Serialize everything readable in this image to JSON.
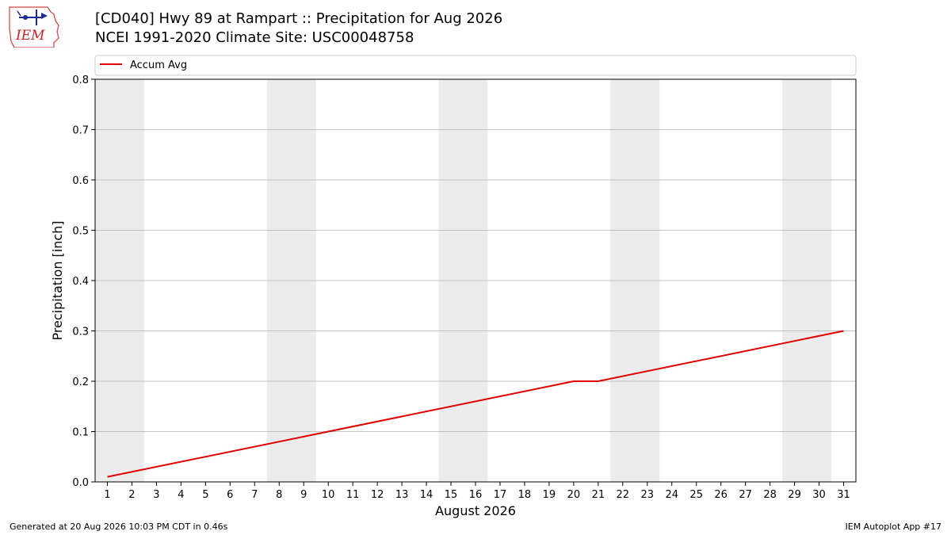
{
  "header": {
    "title_line1": "[CD040] Hwy 89 at Rampart :: Precipitation for Aug 2026",
    "title_line2": "NCEI 1991-2020 Climate Site: USC00048758",
    "logo_text": "IEM"
  },
  "footer": {
    "left": "Generated at 20 Aug 2026 10:03 PM CDT in 0.46s",
    "right": "IEM Autoplot App #17"
  },
  "colors": {
    "line": "#e00000",
    "weekend_band": "#ececec",
    "grid": "#b0b0b0"
  },
  "chart_data": {
    "type": "line",
    "xlabel": "August 2026",
    "ylabel": "Precipitation [inch]",
    "ylim": [
      0,
      0.8
    ],
    "xlim": [
      0.5,
      31.5
    ],
    "yticks": [
      "0.0",
      "0.1",
      "0.2",
      "0.3",
      "0.4",
      "0.5",
      "0.6",
      "0.7",
      "0.8"
    ],
    "xticks": [
      "1",
      "2",
      "3",
      "4",
      "5",
      "6",
      "7",
      "8",
      "9",
      "10",
      "11",
      "12",
      "13",
      "14",
      "15",
      "16",
      "17",
      "18",
      "19",
      "20",
      "21",
      "22",
      "23",
      "24",
      "25",
      "26",
      "27",
      "28",
      "29",
      "30",
      "31"
    ],
    "grid": "horizontal",
    "legend_position": "top",
    "shaded_weekend_days": [
      [
        1,
        2
      ],
      [
        8,
        9
      ],
      [
        15,
        16
      ],
      [
        22,
        23
      ],
      [
        29,
        30
      ]
    ],
    "series": [
      {
        "name": "Accum Avg",
        "x": [
          1,
          20,
          21,
          31
        ],
        "y": [
          0.01,
          0.2,
          0.2,
          0.3
        ]
      }
    ]
  }
}
